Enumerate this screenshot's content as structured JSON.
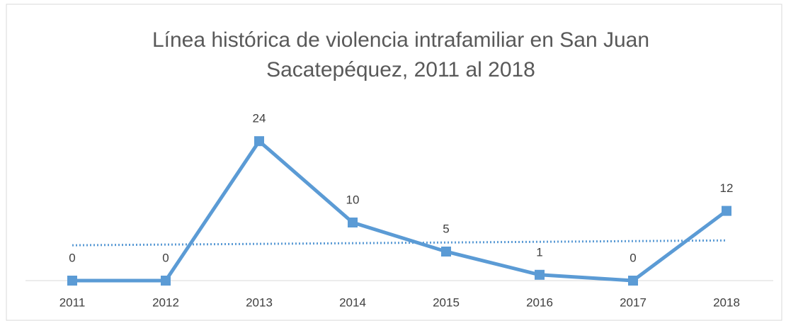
{
  "chart_data": {
    "type": "line",
    "title": [
      "Línea histórica de violencia intrafamiliar en San Juan",
      "Sacatepéquez, 2011 al 2018"
    ],
    "categories": [
      "2011",
      "2012",
      "2013",
      "2014",
      "2015",
      "2016",
      "2017",
      "2018"
    ],
    "series": [
      {
        "color": "#5b9bd5",
        "values": [
          0,
          0,
          24,
          10,
          5,
          1,
          0,
          12
        ]
      }
    ],
    "ylim": [
      0,
      30
    ],
    "trendline": "linear",
    "data_labels": true
  }
}
